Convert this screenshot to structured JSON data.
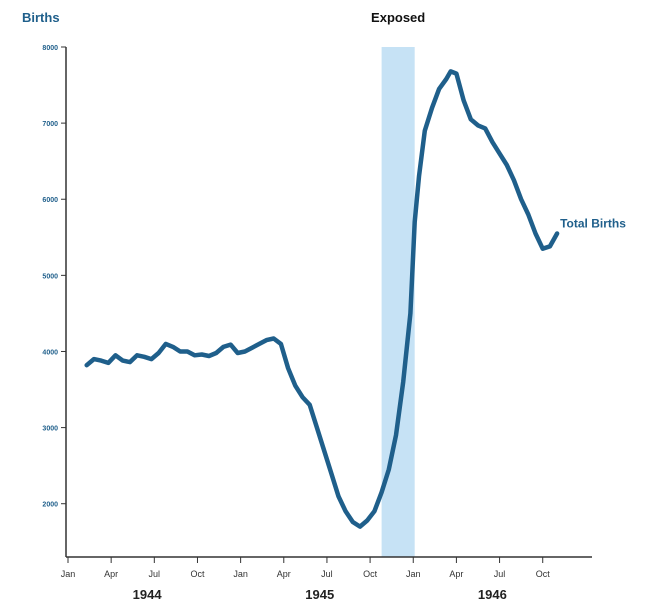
{
  "chart_data": {
    "type": "line",
    "ylabel": "Births",
    "ylim": [
      1300,
      8000
    ],
    "yticks": [
      2000,
      3000,
      4000,
      5000,
      6000,
      7000,
      8000
    ],
    "yticklabels": [
      "2000",
      "3000",
      "4000",
      "5000",
      "6000",
      "7000",
      "8000"
    ],
    "xlim": [
      0,
      35.8
    ],
    "xticks": [
      {
        "x": 0,
        "label": "Jan"
      },
      {
        "x": 3,
        "label": "Apr"
      },
      {
        "x": 6,
        "label": "Jul"
      },
      {
        "x": 9,
        "label": "Oct"
      },
      {
        "x": 12,
        "label": "Jan"
      },
      {
        "x": 15,
        "label": "Apr"
      },
      {
        "x": 18,
        "label": "Jul"
      },
      {
        "x": 21,
        "label": "Oct"
      },
      {
        "x": 24,
        "label": "Jan"
      },
      {
        "x": 27,
        "label": "Apr"
      },
      {
        "x": 30,
        "label": "Jul"
      },
      {
        "x": 33,
        "label": "Oct"
      }
    ],
    "year_labels": [
      {
        "x": 5.5,
        "label": "1944"
      },
      {
        "x": 17.5,
        "label": "1945"
      },
      {
        "x": 29.5,
        "label": "1946"
      }
    ],
    "shaded_region": {
      "x0": 21.8,
      "x1": 24.1,
      "label": "Exposed",
      "color": "#c6e2f5"
    },
    "series": [
      {
        "name": "Total Births",
        "color": "#1f5f8b",
        "points": [
          [
            1.3,
            3820
          ],
          [
            1.8,
            3900
          ],
          [
            2.3,
            3880
          ],
          [
            2.8,
            3850
          ],
          [
            3.3,
            3950
          ],
          [
            3.8,
            3880
          ],
          [
            4.3,
            3860
          ],
          [
            4.8,
            3950
          ],
          [
            5.3,
            3930
          ],
          [
            5.8,
            3900
          ],
          [
            6.3,
            3980
          ],
          [
            6.8,
            4100
          ],
          [
            7.3,
            4060
          ],
          [
            7.8,
            4000
          ],
          [
            8.3,
            4000
          ],
          [
            8.8,
            3950
          ],
          [
            9.3,
            3960
          ],
          [
            9.8,
            3940
          ],
          [
            10.3,
            3980
          ],
          [
            10.8,
            4060
          ],
          [
            11.3,
            4090
          ],
          [
            11.8,
            3980
          ],
          [
            12.3,
            4000
          ],
          [
            12.8,
            4050
          ],
          [
            13.3,
            4100
          ],
          [
            13.8,
            4150
          ],
          [
            14.3,
            4170
          ],
          [
            14.8,
            4100
          ],
          [
            15.3,
            3780
          ],
          [
            15.8,
            3550
          ],
          [
            16.3,
            3400
          ],
          [
            16.8,
            3300
          ],
          [
            17.3,
            3000
          ],
          [
            17.8,
            2700
          ],
          [
            18.3,
            2400
          ],
          [
            18.8,
            2100
          ],
          [
            19.3,
            1900
          ],
          [
            19.8,
            1760
          ],
          [
            20.3,
            1700
          ],
          [
            20.8,
            1780
          ],
          [
            21.3,
            1900
          ],
          [
            21.8,
            2150
          ],
          [
            22.3,
            2450
          ],
          [
            22.8,
            2900
          ],
          [
            23.3,
            3600
          ],
          [
            23.8,
            4500
          ],
          [
            24.1,
            5700
          ],
          [
            24.4,
            6300
          ],
          [
            24.8,
            6900
          ],
          [
            25.3,
            7200
          ],
          [
            25.8,
            7450
          ],
          [
            26.3,
            7580
          ],
          [
            26.6,
            7680
          ],
          [
            27.0,
            7650
          ],
          [
            27.5,
            7300
          ],
          [
            28.0,
            7050
          ],
          [
            28.5,
            6970
          ],
          [
            29.0,
            6930
          ],
          [
            29.5,
            6750
          ],
          [
            30.0,
            6600
          ],
          [
            30.5,
            6450
          ],
          [
            31.0,
            6250
          ],
          [
            31.5,
            6000
          ],
          [
            32.0,
            5800
          ],
          [
            32.5,
            5550
          ],
          [
            33.0,
            5350
          ],
          [
            33.5,
            5380
          ],
          [
            34.0,
            5550
          ]
        ]
      }
    ]
  }
}
